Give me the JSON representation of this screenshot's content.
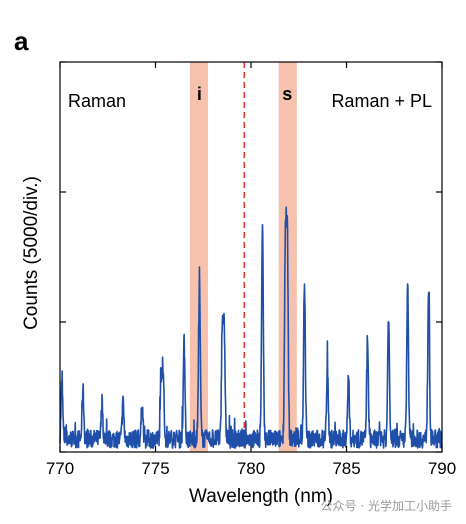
{
  "figure": {
    "panel_label": "a",
    "watermark": "公众号 · 光学加工小助手"
  },
  "colors": {
    "line": "#1f4fa8",
    "band": "#f7c2ad",
    "dashed": "#e8373b",
    "axis": "#000000"
  },
  "chart_data": {
    "type": "line",
    "xlabel": "Wavelength (nm)",
    "ylabel": "Counts (5000/div.)",
    "xlim": [
      770,
      790
    ],
    "ylim": [
      0,
      15000
    ],
    "xticks": [
      "770",
      "775",
      "780",
      "785",
      "790"
    ],
    "ytick_values": [
      0,
      5000,
      10000,
      15000
    ],
    "grid": false,
    "legend": "none",
    "annotations": [
      {
        "text": "Raman",
        "position": "top-left"
      },
      {
        "text": "Raman + PL",
        "position": "top-right"
      },
      {
        "text": "i",
        "x": 777.3
      },
      {
        "text": "s",
        "x": 781.9
      }
    ],
    "highlight_bands": [
      {
        "label": "i",
        "x0": 776.8,
        "x1": 777.75
      },
      {
        "label": "s",
        "x0": 781.45,
        "x1": 782.4
      }
    ],
    "dashed_line_x": 779.65,
    "baseline": 500,
    "peaks": [
      {
        "x": 770.1,
        "y": 2600
      },
      {
        "x": 771.2,
        "y": 2400
      },
      {
        "x": 772.2,
        "y": 1800
      },
      {
        "x": 773.3,
        "y": 1900
      },
      {
        "x": 774.3,
        "y": 1850
      },
      {
        "x": 775.3,
        "y": 2800
      },
      {
        "x": 775.4,
        "y": 2900
      },
      {
        "x": 776.5,
        "y": 4200
      },
      {
        "x": 777.3,
        "y": 6450
      },
      {
        "x": 778.5,
        "y": 4800
      },
      {
        "x": 778.6,
        "y": 4500
      },
      {
        "x": 780.6,
        "y": 8500
      },
      {
        "x": 781.8,
        "y": 8000
      },
      {
        "x": 781.9,
        "y": 8300
      },
      {
        "x": 782.8,
        "y": 6300
      },
      {
        "x": 784.0,
        "y": 3300
      },
      {
        "x": 785.1,
        "y": 2800
      },
      {
        "x": 786.1,
        "y": 4000
      },
      {
        "x": 787.2,
        "y": 5200
      },
      {
        "x": 788.2,
        "y": 6400
      },
      {
        "x": 789.3,
        "y": 6300
      }
    ]
  }
}
